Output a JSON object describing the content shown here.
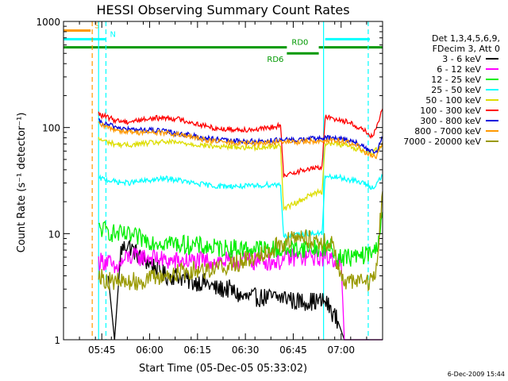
{
  "chart_data": {
    "type": "line",
    "title": "HESSI Observing Summary Count Rates",
    "xlabel": "Start Time (05-Dec-05 05:33:02)",
    "ylabel": "Count Rate (s⁻¹ detector⁻¹)",
    "yscale": "log",
    "ylim": [
      1,
      1000
    ],
    "xlim_minutes_after_0533": [
      0,
      100
    ],
    "x_ticks": [
      "05:45",
      "06:00",
      "06:15",
      "06:30",
      "06:45",
      "07:00"
    ],
    "y_ticks": [
      "1",
      "10",
      "100",
      "1000"
    ],
    "grid": false,
    "legend_position": "right",
    "legend_header": [
      "Det 1,3,4,5,6,9,",
      "FDecim 3, Att 0"
    ],
    "x_unit_note": "x values are minutes after 05:33:02",
    "series": [
      {
        "name": "3 - 6 keV",
        "color": "#000000",
        "x": [
          14,
          16,
          18,
          20,
          24,
          28,
          32,
          36,
          40,
          44,
          48,
          52,
          56,
          60,
          64,
          68,
          71,
          72,
          75,
          78,
          82,
          86,
          88,
          90,
          93,
          96,
          100
        ],
        "y": [
          4,
          1,
          7,
          8,
          6,
          5,
          4,
          4,
          3.5,
          3.5,
          3,
          3,
          2.5,
          2.5,
          2.5,
          2.5,
          2.5,
          2.3,
          2.3,
          2.3,
          2.3,
          1.5,
          1,
          1,
          1,
          1,
          1
        ]
      },
      {
        "name": "6 - 12 keV",
        "color": "#ff00ff",
        "x": [
          11,
          14,
          16,
          20,
          24,
          28,
          32,
          36,
          40,
          44,
          48,
          52,
          56,
          60,
          64,
          68,
          72,
          76,
          80,
          84,
          86,
          87,
          88,
          90,
          94,
          100
        ],
        "y": [
          5.5,
          5.5,
          4.5,
          6,
          6,
          6,
          5.5,
          5.5,
          5.5,
          5.5,
          5.5,
          5.5,
          5.5,
          5.5,
          5.5,
          5.5,
          6,
          6,
          6,
          6,
          5.5,
          5.5,
          1,
          1,
          1,
          1
        ]
      },
      {
        "name": "12 - 25 keV",
        "color": "#00ee00",
        "x": [
          11,
          12,
          16,
          20,
          24,
          28,
          32,
          36,
          40,
          44,
          48,
          52,
          56,
          60,
          64,
          68,
          72,
          76,
          80,
          84,
          86,
          87,
          88,
          92,
          96,
          98,
          100
        ],
        "y": [
          11,
          11,
          10,
          9.5,
          9,
          8.5,
          8.3,
          8,
          7.8,
          7.5,
          7.3,
          7.3,
          7.2,
          7.2,
          7.2,
          7,
          7.2,
          7.3,
          7.3,
          7.3,
          6,
          6,
          6,
          6,
          6.5,
          7,
          16
        ]
      },
      {
        "name": "25 - 50 keV",
        "color": "#00ffff",
        "x": [
          11,
          12,
          16,
          20,
          24,
          28,
          32,
          36,
          40,
          44,
          48,
          52,
          56,
          60,
          64,
          68,
          69,
          72,
          76,
          80,
          81,
          82,
          86,
          90,
          94,
          97,
          100
        ],
        "y": [
          33,
          33,
          31,
          30,
          31,
          32,
          33,
          32,
          30,
          29,
          28,
          28,
          28,
          28,
          29,
          29,
          9.5,
          9.5,
          10,
          10,
          10,
          34,
          34,
          32,
          30,
          27,
          35
        ]
      },
      {
        "name": "50 - 100 keV",
        "color": "#dddd00",
        "x": [
          11,
          12,
          16,
          20,
          24,
          28,
          32,
          36,
          40,
          44,
          48,
          52,
          56,
          60,
          64,
          68,
          69,
          72,
          76,
          80,
          81,
          82,
          86,
          90,
          94,
          97,
          100
        ],
        "y": [
          78,
          76,
          70,
          68,
          70,
          72,
          73,
          72,
          70,
          68,
          66,
          66,
          65,
          65,
          66,
          67,
          17,
          19,
          22,
          25,
          25,
          70,
          70,
          66,
          60,
          58,
          70
        ]
      },
      {
        "name": "100 - 300 keV",
        "color": "#ff0000",
        "x": [
          11,
          12,
          16,
          20,
          24,
          28,
          32,
          36,
          40,
          44,
          48,
          52,
          56,
          60,
          64,
          68,
          69,
          72,
          76,
          80,
          81,
          82,
          86,
          90,
          94,
          97,
          100
        ],
        "y": [
          135,
          130,
          118,
          113,
          118,
          122,
          124,
          120,
          112,
          104,
          98,
          96,
          96,
          96,
          98,
          105,
          34,
          38,
          40,
          42,
          42,
          125,
          120,
          110,
          95,
          80,
          150
        ]
      },
      {
        "name": "300 - 800 keV",
        "color": "#0000dd",
        "x": [
          11,
          12,
          16,
          20,
          24,
          28,
          32,
          36,
          40,
          44,
          48,
          52,
          56,
          60,
          64,
          68,
          72,
          76,
          80,
          84,
          88,
          92,
          94,
          96,
          98,
          100
        ],
        "y": [
          115,
          110,
          102,
          96,
          95,
          94,
          92,
          88,
          84,
          80,
          77,
          75,
          74,
          74,
          75,
          76,
          76,
          78,
          79,
          80,
          78,
          72,
          65,
          60,
          58,
          80
        ]
      },
      {
        "name": "800 - 7000 keV",
        "color": "#ff9900",
        "x": [
          11,
          12,
          16,
          20,
          24,
          28,
          32,
          36,
          40,
          44,
          48,
          52,
          56,
          60,
          64,
          68,
          72,
          76,
          80,
          84,
          88,
          92,
          94,
          96,
          98,
          100
        ],
        "y": [
          108,
          104,
          96,
          91,
          90,
          90,
          89,
          85,
          81,
          77,
          74,
          72,
          71,
          71,
          72,
          73,
          73,
          74,
          75,
          76,
          74,
          68,
          60,
          55,
          52,
          72
        ]
      },
      {
        "name": "7000 - 20000 keV",
        "color": "#999900",
        "x": [
          11,
          12,
          16,
          20,
          24,
          28,
          32,
          36,
          40,
          44,
          48,
          52,
          56,
          60,
          64,
          68,
          72,
          76,
          80,
          84,
          86,
          88,
          92,
          96,
          98,
          100
        ],
        "y": [
          4.5,
          3.8,
          3.5,
          3.5,
          3.6,
          3.8,
          4,
          4.3,
          4.5,
          4.6,
          4.8,
          5,
          5.5,
          6,
          7,
          8,
          9,
          9,
          8.5,
          8,
          5,
          3.5,
          3.5,
          3.5,
          4.5,
          25
        ]
      }
    ],
    "annotations": [
      {
        "label": "S",
        "color": "#ff9900",
        "x_start": 0,
        "x_end": 8.5,
        "level": 820
      },
      {
        "label": "N",
        "color": "#00ffff",
        "x_start": 0,
        "x_end": 13.3,
        "level": 680
      },
      {
        "label": "RD0",
        "color": "#009900",
        "x_start": 0,
        "x_end": 70,
        "level": 570
      },
      {
        "label": "RD6",
        "color": "#009900",
        "x_start": 70,
        "x_end": 80,
        "level": 500
      },
      {
        "label": "",
        "color": "#009900",
        "x_start": 80,
        "x_end": 100,
        "level": 570
      },
      {
        "label": "",
        "color": "#00ffff",
        "x_start": 82,
        "x_end": 96,
        "level": 680
      }
    ],
    "vertical_markers": [
      {
        "x": 9.0,
        "color": "#ff9900",
        "style": "dashed"
      },
      {
        "x": 11.0,
        "color": "#00ffff",
        "style": "solid"
      },
      {
        "x": 13.3,
        "color": "#00ffff",
        "style": "dashed"
      },
      {
        "x": 81.5,
        "color": "#00ffff",
        "style": "solid"
      },
      {
        "x": 95.5,
        "color": "#00ffff",
        "style": "dashed"
      }
    ]
  },
  "footer": {
    "date_stamp": "6-Dec-2009 15:44"
  }
}
